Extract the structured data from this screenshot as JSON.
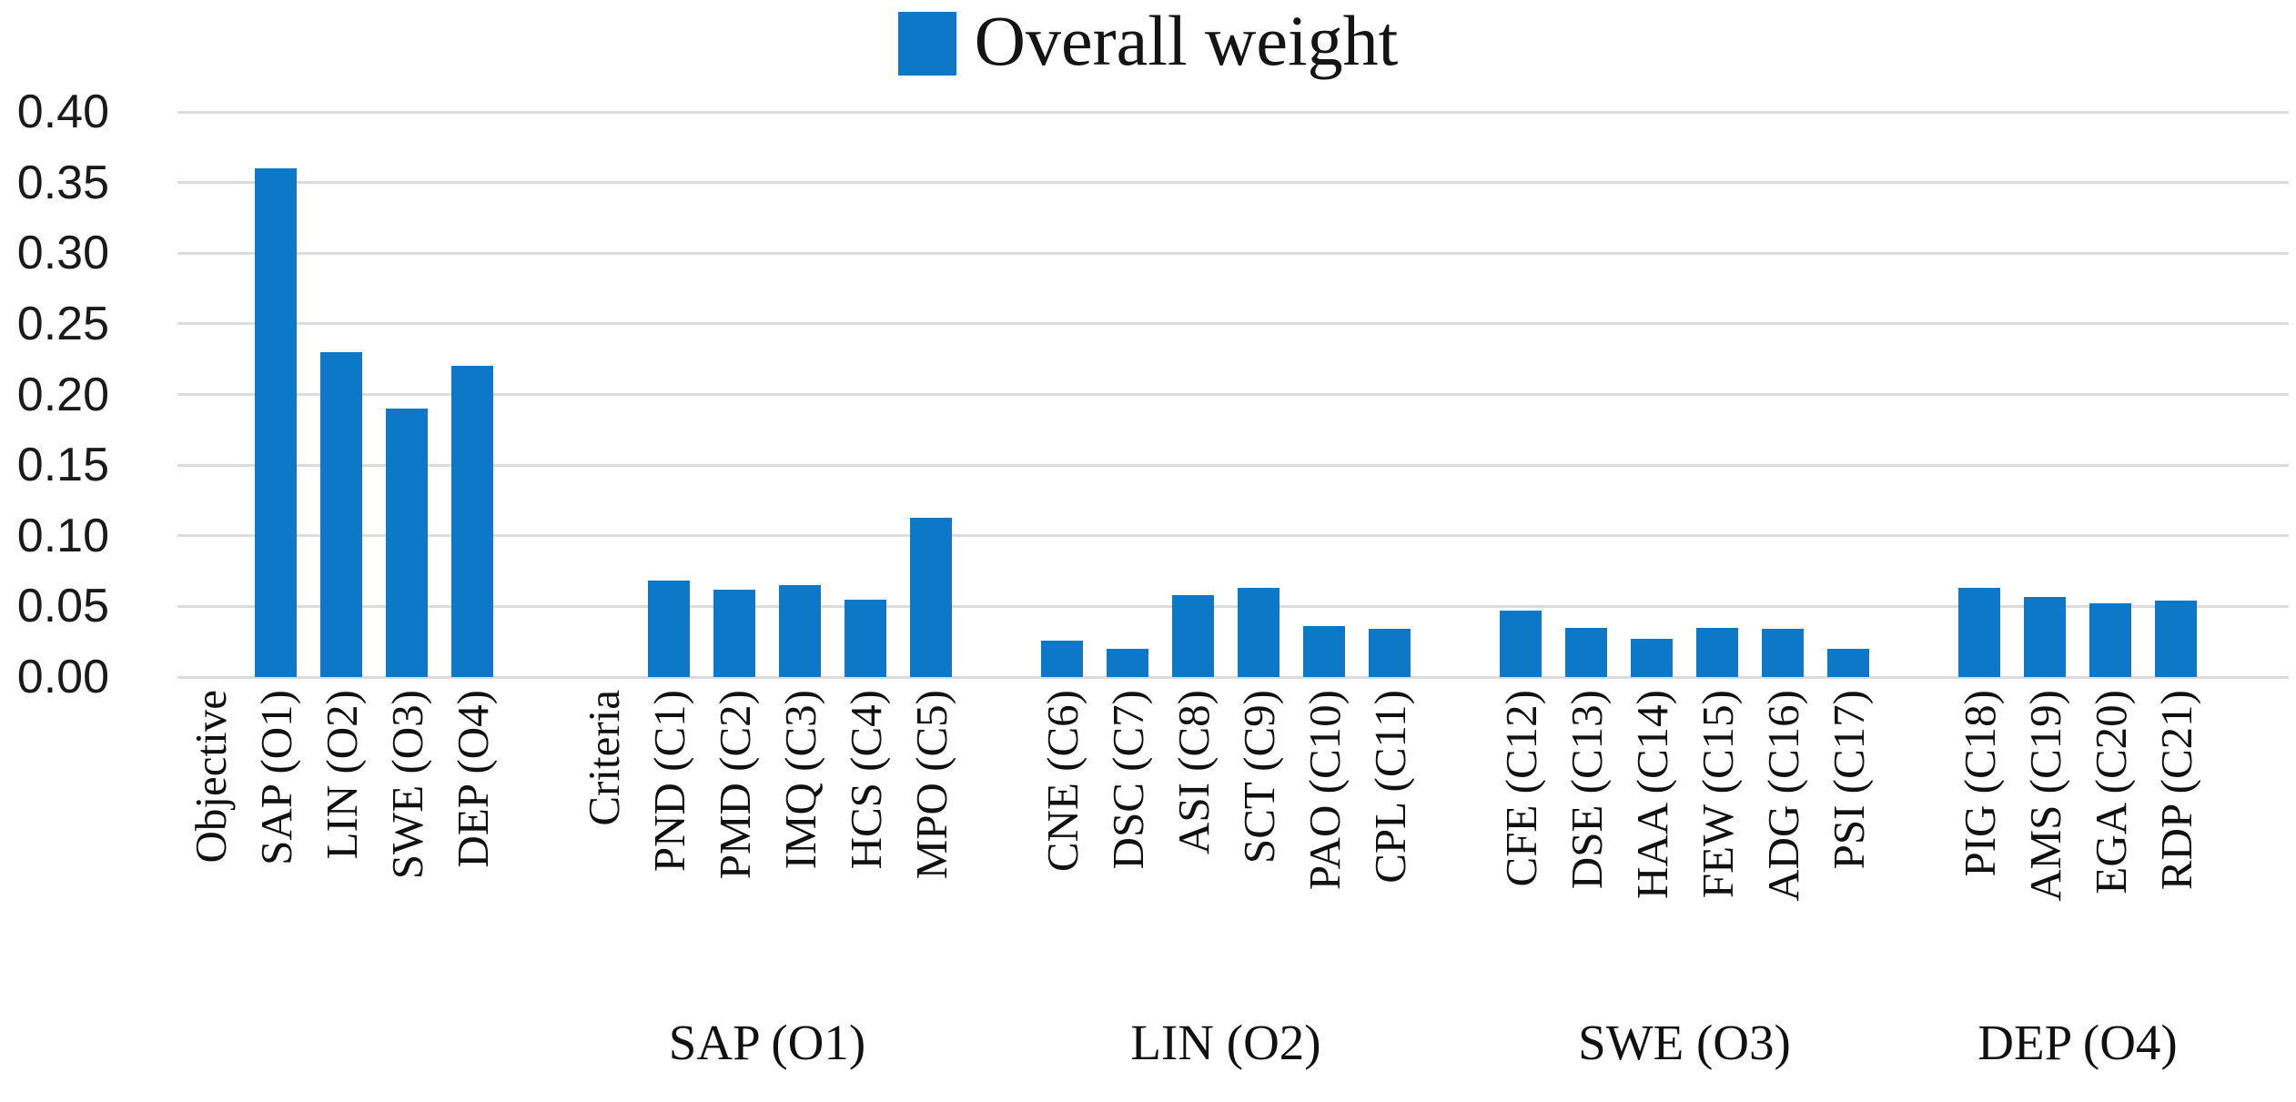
{
  "legend": {
    "label": "Overall weight",
    "swatch_color": "#0d77c8"
  },
  "y_axis": {
    "ticks": [
      "0.40",
      "0.35",
      "0.30",
      "0.25",
      "0.20",
      "0.15",
      "0.10",
      "0.05",
      "0.00"
    ]
  },
  "chart_data": {
    "type": "bar",
    "title": "",
    "series_name": "Overall weight",
    "xlabel": "",
    "ylabel": "",
    "ylim": [
      0,
      0.4
    ],
    "ytick_interval": 0.05,
    "grid": true,
    "legend_position": "top-center",
    "bar_color": "#0d77c8",
    "gridline_color": "#dcdcdc",
    "groups": [
      {
        "group_label": "",
        "categories": [
          "Objective",
          "SAP (O1)",
          "LIN (O2)",
          "SWE (O3)",
          "DEP (O4)"
        ],
        "values": [
          null,
          0.36,
          0.23,
          0.19,
          0.22
        ]
      },
      {
        "group_label": "SAP (O1)",
        "categories": [
          "Criteria",
          "PND (C1)",
          "PMD (C2)",
          "IMQ (C3)",
          "HCS (C4)",
          "MPO (C5)"
        ],
        "values": [
          null,
          0.068,
          0.062,
          0.065,
          0.055,
          0.113
        ]
      },
      {
        "group_label": "LIN (O2)",
        "categories": [
          "CNE (C6)",
          "DSC (C7)",
          "ASI (C8)",
          "SCT (C9)",
          "PAO (C10)",
          "CPL (C11)"
        ],
        "values": [
          0.026,
          0.02,
          0.058,
          0.063,
          0.036,
          0.034
        ]
      },
      {
        "group_label": "SWE (O3)",
        "categories": [
          "CFE (C12)",
          "DSE (C13)",
          "HAA (C14)",
          "FEW (C15)",
          "ADG (C16)",
          "PSI (C17)"
        ],
        "values": [
          0.047,
          0.035,
          0.027,
          0.035,
          0.034,
          0.02
        ]
      },
      {
        "group_label": "DEP (O4)",
        "categories": [
          "PIG (C18)",
          "AMS (C19)",
          "EGA (C20)",
          "RDP (C21)"
        ],
        "values": [
          0.063,
          0.057,
          0.052,
          0.054
        ]
      }
    ]
  }
}
